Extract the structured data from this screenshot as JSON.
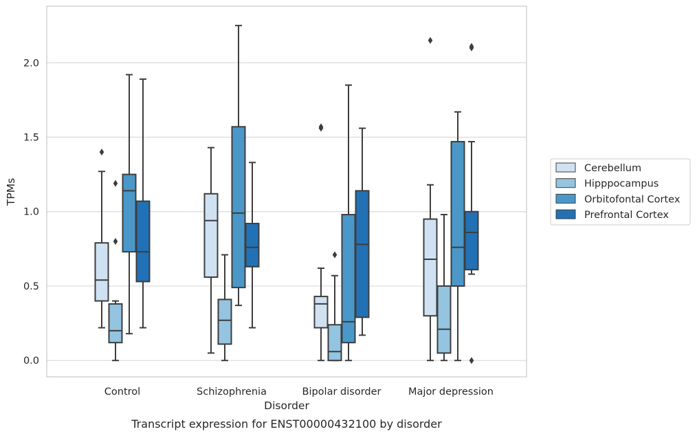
{
  "chart_data": {
    "type": "box",
    "caption": "Transcript expression for ENST00000432100 by disorder",
    "xlabel": "Disorder",
    "ylabel": "TPMs",
    "ylim": [
      -0.11,
      2.38
    ],
    "yticks": [
      "0.0",
      "0.5",
      "1.0",
      "1.5",
      "2.0"
    ],
    "ytick_values": [
      0.0,
      0.5,
      1.0,
      1.5,
      2.0
    ],
    "grid": "horizontal",
    "legend_position": "right",
    "categories": [
      "Control",
      "Schizophrenia",
      "Bipolar disorder",
      "Major depression"
    ],
    "series": [
      {
        "name": "Cerebellum",
        "color": "#d0e1f2",
        "boxes": [
          {
            "whisker_low": 0.22,
            "q1": 0.4,
            "median": 0.54,
            "q3": 0.79,
            "whisker_high": 1.27,
            "outliers": [
              1.4
            ]
          },
          {
            "whisker_low": 0.05,
            "q1": 0.56,
            "median": 0.94,
            "q3": 1.12,
            "whisker_high": 1.43,
            "outliers": []
          },
          {
            "whisker_low": 0.0,
            "q1": 0.22,
            "median": 0.38,
            "q3": 0.43,
            "whisker_high": 0.62,
            "outliers": [
              1.56,
              1.57
            ]
          },
          {
            "whisker_low": 0.0,
            "q1": 0.3,
            "median": 0.68,
            "q3": 0.95,
            "whisker_high": 1.18,
            "outliers": [
              2.15
            ]
          }
        ]
      },
      {
        "name": "Hipppocampus",
        "color": "#94c4df",
        "boxes": [
          {
            "whisker_low": 0.0,
            "q1": 0.12,
            "median": 0.2,
            "q3": 0.38,
            "whisker_high": 0.4,
            "outliers": [
              0.8,
              1.19
            ]
          },
          {
            "whisker_low": 0.0,
            "q1": 0.11,
            "median": 0.27,
            "q3": 0.41,
            "whisker_high": 0.71,
            "outliers": []
          },
          {
            "whisker_low": 0.0,
            "q1": 0.0,
            "median": 0.06,
            "q3": 0.24,
            "whisker_high": 0.57,
            "outliers": [
              0.71
            ]
          },
          {
            "whisker_low": 0.0,
            "q1": 0.05,
            "median": 0.21,
            "q3": 0.5,
            "whisker_high": 0.98,
            "outliers": []
          }
        ]
      },
      {
        "name": "Orbitofontal Cortex",
        "color": "#4a98c9",
        "boxes": [
          {
            "whisker_low": 0.18,
            "q1": 0.73,
            "median": 1.14,
            "q3": 1.25,
            "whisker_high": 1.92,
            "outliers": []
          },
          {
            "whisker_low": 0.37,
            "q1": 0.49,
            "median": 0.99,
            "q3": 1.57,
            "whisker_high": 2.25,
            "outliers": []
          },
          {
            "whisker_low": 0.0,
            "q1": 0.12,
            "median": 0.26,
            "q3": 0.98,
            "whisker_high": 1.85,
            "outliers": []
          },
          {
            "whisker_low": 0.0,
            "q1": 0.5,
            "median": 0.76,
            "q3": 1.47,
            "whisker_high": 1.67,
            "outliers": []
          }
        ]
      },
      {
        "name": "Prefrontal Cortex",
        "color": "#2271b5",
        "boxes": [
          {
            "whisker_low": 0.22,
            "q1": 0.53,
            "median": 0.73,
            "q3": 1.07,
            "whisker_high": 1.89,
            "outliers": []
          },
          {
            "whisker_low": 0.22,
            "q1": 0.63,
            "median": 0.76,
            "q3": 0.92,
            "whisker_high": 1.33,
            "outliers": []
          },
          {
            "whisker_low": 0.17,
            "q1": 0.29,
            "median": 0.78,
            "q3": 1.14,
            "whisker_high": 1.56,
            "outliers": []
          },
          {
            "whisker_low": 0.58,
            "q1": 0.61,
            "median": 0.86,
            "q3": 1.0,
            "whisker_high": 1.47,
            "outliers": [
              0.0,
              2.1,
              2.11
            ]
          }
        ]
      }
    ]
  }
}
